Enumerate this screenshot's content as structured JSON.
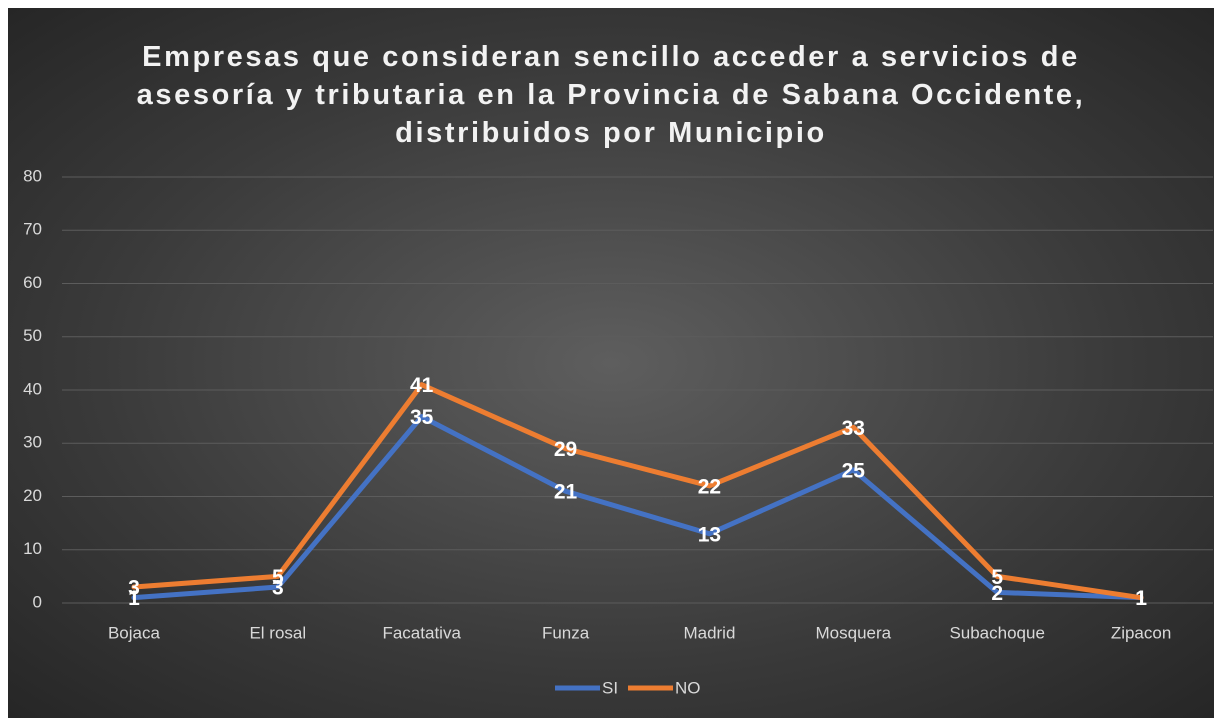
{
  "chart_data": {
    "type": "line",
    "stacked": true,
    "title": "Empresas que consideran sencillo acceder a servicios de asesoría y tributaria en la Provincia de Sabana Occidente, distribuidos por Municipio",
    "categories": [
      "Bojaca",
      "El rosal",
      "Facatativa",
      "Funza",
      "Madrid",
      "Mosquera",
      "Subachoque",
      "Zipacon"
    ],
    "series": [
      {
        "name": "SI",
        "color": "#4472c4",
        "values": [
          1,
          3,
          35,
          21,
          13,
          25,
          2,
          1
        ]
      },
      {
        "name": "NO",
        "color": "#ed7d31",
        "values": [
          3,
          5,
          41,
          29,
          22,
          33,
          5,
          1
        ]
      }
    ],
    "ylim": [
      0,
      80
    ],
    "yticks": [
      0,
      10,
      20,
      30,
      40,
      50,
      60,
      70,
      80
    ],
    "grid": true,
    "legend": "bottom"
  }
}
